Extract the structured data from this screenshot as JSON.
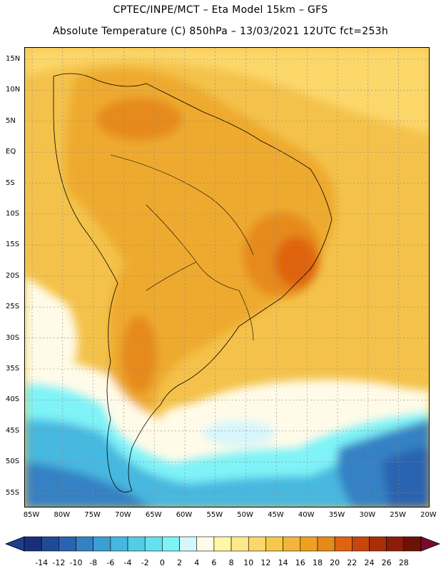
{
  "title_line1": "CPTEC/INPE/MCT –  Eta Model 15km – GFS",
  "title_line2": "Absolute Temperature (C) 850hPa – 13/03/2021 12UTC fct=253h",
  "lat_labels": [
    "15N",
    "10N",
    "5N",
    "EQ",
    "5S",
    "10S",
    "15S",
    "20S",
    "25S",
    "30S",
    "35S",
    "40S",
    "45S",
    "50S",
    "55S"
  ],
  "lon_labels": [
    "85W",
    "80W",
    "75W",
    "70W",
    "65W",
    "60W",
    "55W",
    "50W",
    "45W",
    "40W",
    "35W",
    "30W",
    "25W",
    "20W"
  ],
  "colorbar": {
    "labels": [
      "-14",
      "-12",
      "-10",
      "-8",
      "-6",
      "-4",
      "-2",
      "0",
      "2",
      "4",
      "6",
      "8",
      "10",
      "12",
      "14",
      "16",
      "18",
      "20",
      "22",
      "24",
      "26",
      "28"
    ],
    "colors": [
      "#1a2f7a",
      "#1f4a96",
      "#2b63b0",
      "#3581c4",
      "#3c9fd4",
      "#46b8e0",
      "#53cde6",
      "#63e1ee",
      "#7ff3f7",
      "#d6f6fb",
      "#fffbe8",
      "#fff7a3",
      "#fde98a",
      "#fcd76a",
      "#f6c84a",
      "#f3b53a",
      "#efa020",
      "#e68a1a",
      "#df6410",
      "#c8450c",
      "#a82e0a",
      "#8a1e0a",
      "#6e1208"
    ],
    "under_color": "#1e3f8c",
    "over_color": "#7a0a2a"
  },
  "map_colors": {
    "sea_warm": "#f4c24a",
    "sea_mid": "#fcd76a",
    "land_warm": "#eeaa2e",
    "land_hot": "#e68a1a",
    "land_hotter": "#df6410",
    "cool": "#fffbe8",
    "cold1": "#d6f6fb",
    "cold2": "#7ff3f7",
    "cold3": "#46b8e0",
    "cold4": "#3581c4",
    "cold5": "#2b63b0"
  }
}
